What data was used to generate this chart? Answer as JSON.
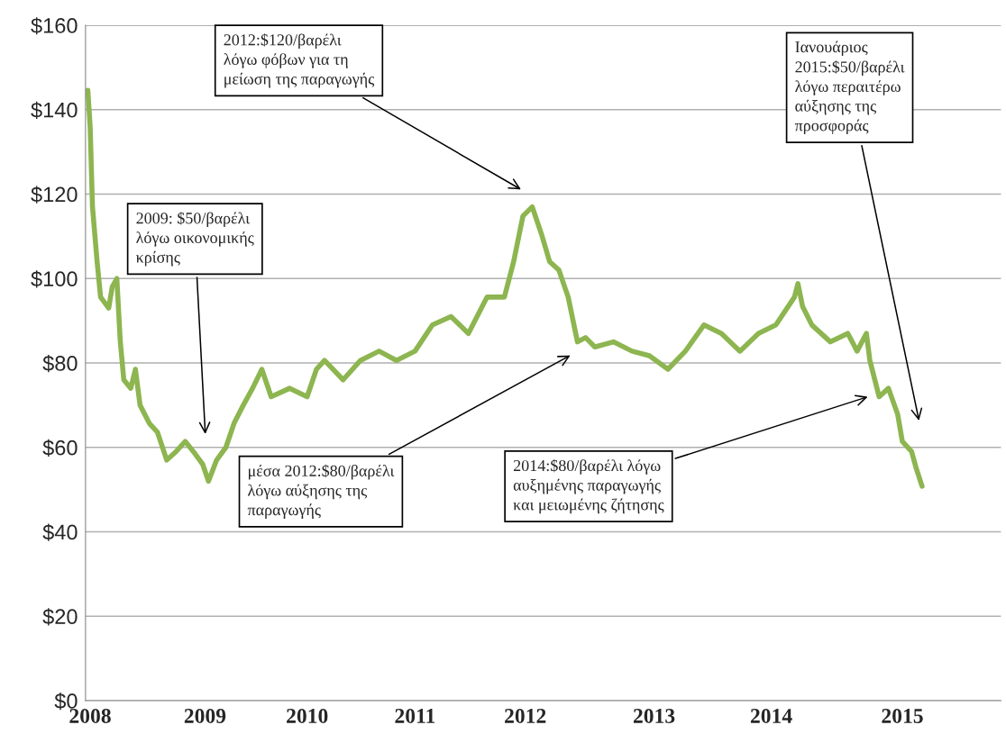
{
  "chart_data": {
    "type": "line",
    "x": [
      2007.98,
      2008.0,
      2008.02,
      2008.06,
      2008.09,
      2008.16,
      2008.19,
      2008.23,
      2008.26,
      2008.29,
      2008.35,
      2008.39,
      2008.43,
      2008.51,
      2008.58,
      2008.66,
      2008.74,
      2008.82,
      2008.89,
      2008.97,
      2009.02,
      2009.09,
      2009.17,
      2009.24,
      2009.32,
      2009.4,
      2009.48,
      2009.56,
      2009.72,
      2009.87,
      2009.95,
      2010.02,
      2010.18,
      2010.33,
      2010.49,
      2010.64,
      2010.8,
      2010.95,
      2011.11,
      2011.26,
      2011.42,
      2011.57,
      2011.65,
      2011.73,
      2011.81,
      2011.89,
      2011.96,
      2012.04,
      2012.12,
      2012.2,
      2012.27,
      2012.35,
      2012.51,
      2012.67,
      2012.82,
      2012.98,
      2013.13,
      2013.29,
      2013.44,
      2013.6,
      2013.76,
      2013.91,
      2014.07,
      2014.1,
      2014.14,
      2014.22,
      2014.38,
      2014.53,
      2014.61,
      2014.69,
      2014.72,
      2014.8,
      2014.88,
      2014.96,
      2015.0,
      2015.08,
      2015.12,
      2015.17
    ],
    "series": [
      {
        "color": "#8db550",
        "values": [
          144.6,
          136,
          117,
          104,
          95.6,
          93,
          98,
          100,
          85,
          76,
          74,
          78.5,
          70,
          65.7,
          63.6,
          57,
          59,
          61.4,
          59,
          56,
          52,
          57,
          60,
          65.7,
          70,
          74,
          78.5,
          72,
          74,
          72,
          78.5,
          80.6,
          76,
          80.6,
          82.8,
          80.6,
          82.8,
          89,
          91,
          87,
          95.6,
          95.6,
          104,
          114.8,
          117,
          110.5,
          104,
          102,
          95.6,
          85,
          86,
          83.8,
          85,
          82.8,
          81.7,
          78.5,
          82.8,
          89,
          87,
          82.8,
          87,
          89,
          95.6,
          98.8,
          93.4,
          89,
          85,
          87,
          82.8,
          87,
          80.6,
          72,
          74,
          67.8,
          61.4,
          59,
          55,
          50.8
        ]
      }
    ],
    "ylim": [
      0,
      160
    ],
    "yticks": [
      {
        "value": 0,
        "label": "$0"
      },
      {
        "value": 20,
        "label": "$20"
      },
      {
        "value": 40,
        "label": "$40"
      },
      {
        "value": 60,
        "label": "$60"
      },
      {
        "value": 80,
        "label": "$80"
      },
      {
        "value": 100,
        "label": "$100"
      },
      {
        "value": 120,
        "label": "$120"
      },
      {
        "value": 140,
        "label": "$140"
      },
      {
        "value": 160,
        "label": "$160"
      }
    ],
    "xlim": [
      2007.96,
      2015.85
    ],
    "xticks": [
      {
        "value": 2008.0,
        "label": "2008"
      },
      {
        "value": 2008.99,
        "label": "2009"
      },
      {
        "value": 2009.87,
        "label": "2010"
      },
      {
        "value": 2010.8,
        "label": "2011"
      },
      {
        "value": 2011.75,
        "label": "2012"
      },
      {
        "value": 2012.86,
        "label": "2013"
      },
      {
        "value": 2013.87,
        "label": "2014"
      },
      {
        "value": 2015.0,
        "label": "2015"
      }
    ],
    "grid": "y",
    "annotations": [
      "2009: $50/βαρέλι\nλόγω οικονομικής\nκρίσης",
      "2012:$120/βαρέλι\nλόγω φόβων για τη\nμείωση της παραγωγής",
      "Ιανουάριος\n2015:$50/βαρέλι\nλόγω περαιτέρω\nαύξησης της\nπροσφοράς",
      "μέσα 2012:$80/βαρέλι\nλόγω αύξησης της\nπαραγωγής",
      "2014:$80/βαρέλι λόγω\nαυξημένης παραγωγής\nκαι μειωμένης ζήτησης"
    ]
  }
}
